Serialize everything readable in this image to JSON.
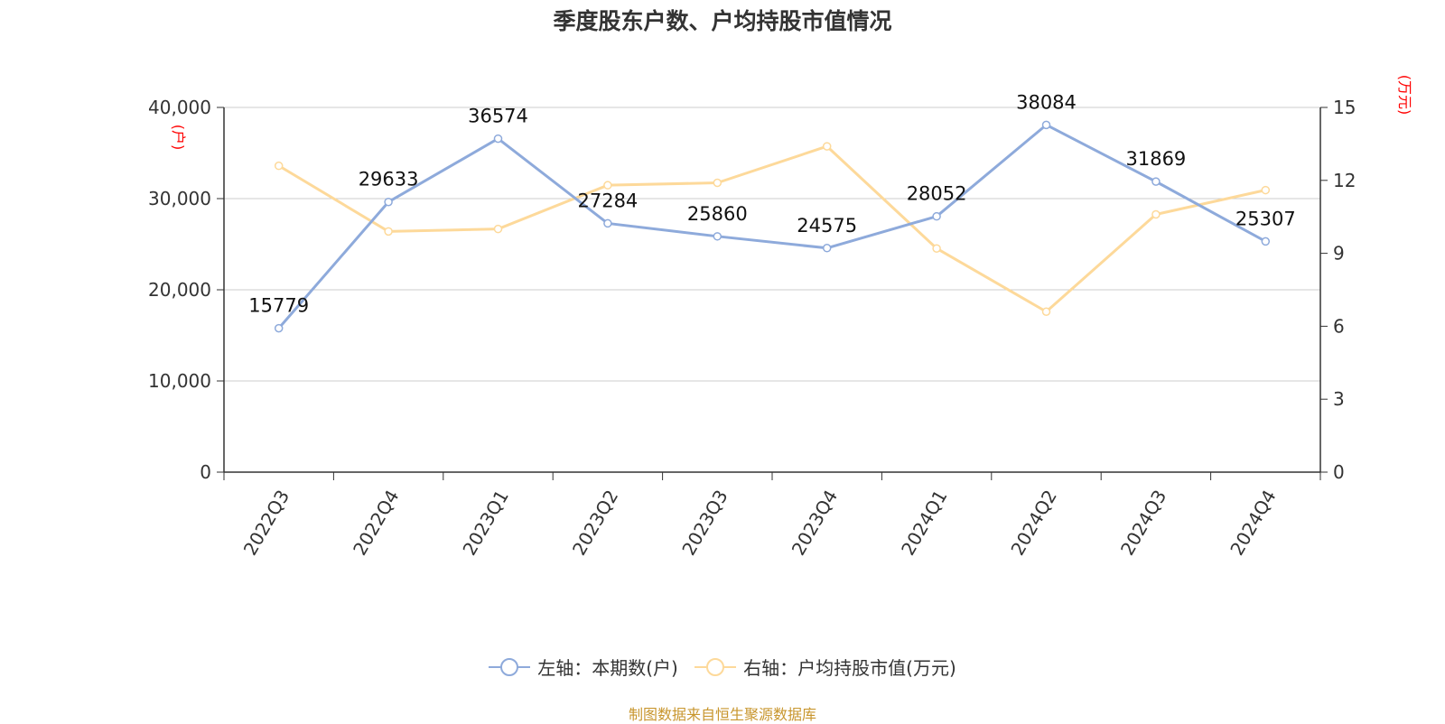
{
  "title": "季度股东户数、户均持股市值情况",
  "source": "制图数据来自恒生聚源数据库",
  "colors": {
    "left_series": "#8eaadb",
    "right_series": "#fdd99a",
    "unit": "#ff0000",
    "grid": "#cccccc"
  },
  "legend": [
    {
      "label": "左轴：本期数(户)",
      "color": "#8eaadb"
    },
    {
      "label": "右轴：户均持股市值(万元)",
      "color": "#fdd99a"
    }
  ],
  "chart_data": {
    "type": "line",
    "categories": [
      "2022Q3",
      "2022Q4",
      "2023Q1",
      "2023Q2",
      "2023Q3",
      "2023Q4",
      "2024Q1",
      "2024Q2",
      "2024Q3",
      "2024Q4"
    ],
    "y_left": {
      "unit": "(户)",
      "min": 0,
      "max": 40000,
      "ticks": [
        "0",
        "10,000",
        "20,000",
        "30,000",
        "40,000"
      ]
    },
    "y_right": {
      "unit": "(万元)",
      "min": 0,
      "max": 15,
      "ticks": [
        "0",
        "3",
        "6",
        "9",
        "12",
        "15"
      ]
    },
    "grid": true,
    "legend_position": "bottom",
    "series": [
      {
        "name": "左轴：本期数(户)",
        "axis": "left",
        "values": [
          15779,
          29633,
          36574,
          27284,
          25860,
          24575,
          28052,
          38084,
          31869,
          25307
        ],
        "labels": [
          "15779",
          "29633",
          "36574",
          "27284",
          "25860",
          "24575",
          "28052",
          "38084",
          "31869",
          "25307"
        ]
      },
      {
        "name": "右轴：户均持股市值(万元)",
        "axis": "right",
        "values": [
          12.6,
          9.9,
          10.0,
          11.8,
          11.9,
          13.4,
          9.2,
          6.6,
          10.6,
          11.6
        ]
      }
    ]
  }
}
